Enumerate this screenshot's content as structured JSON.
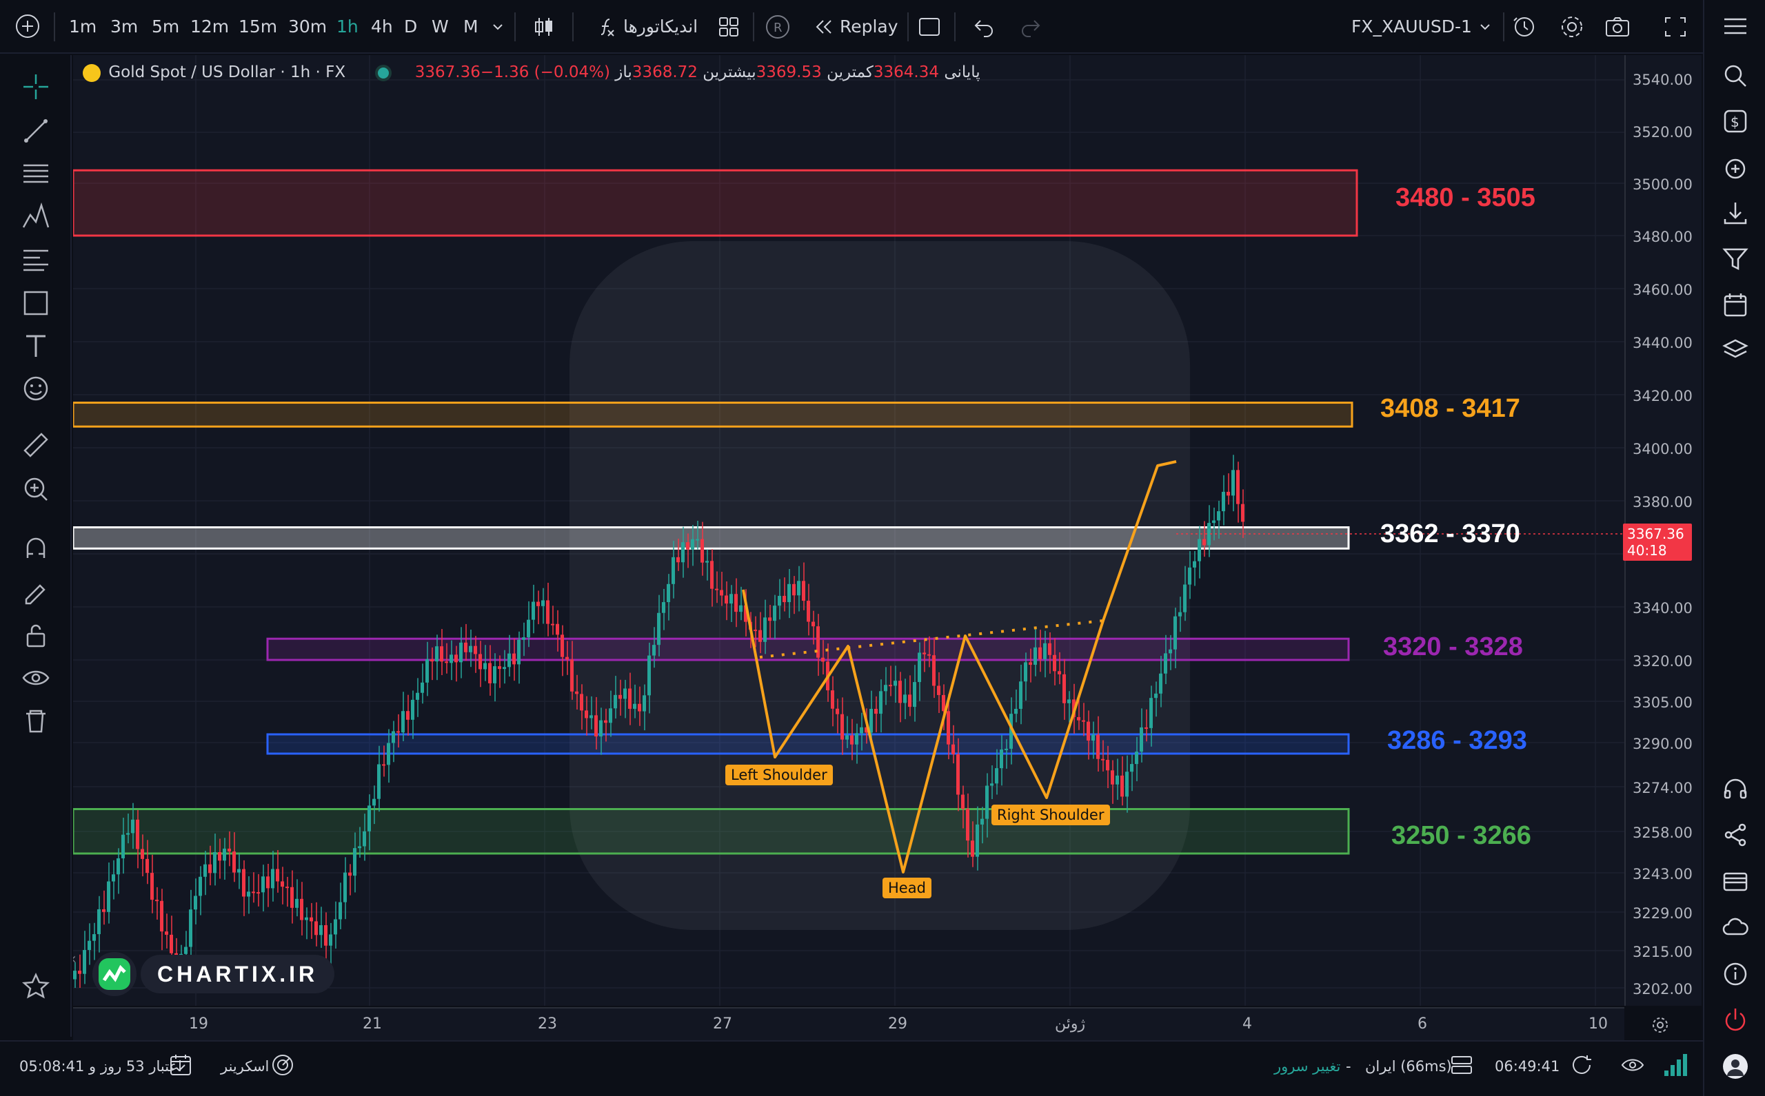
{
  "toolbar": {
    "timeframes": [
      "1m",
      "3m",
      "5m",
      "12m",
      "15m",
      "30m",
      "1h",
      "4h",
      "D",
      "W",
      "M"
    ],
    "active_timeframe": "1h",
    "indicators_label": "اندیکاتورها",
    "replay_label": "Replay",
    "symbol": "FX_XAUUSD-1"
  },
  "legend": {
    "title": "Gold Spot / US Dollar",
    "interval": "1h",
    "source": "FX",
    "open_label": "باز",
    "open_value": "3368.72",
    "high_label": "بیشترین",
    "high_value": "3369.53",
    "low_label": "کمترین",
    "low_value": "3364.34",
    "close_label": "پایانی",
    "close_value": "3367.36",
    "change": "−1.36 (−0.04%)"
  },
  "zones": [
    {
      "label": "3480 - 3505",
      "low": 3480,
      "high": 3505,
      "color": "#f23645"
    },
    {
      "label": "3408 - 3417",
      "low": 3408,
      "high": 3417,
      "color": "#f7a21b"
    },
    {
      "label": "3362 - 3370",
      "low": 3362,
      "high": 3370,
      "color": "#ffffff"
    },
    {
      "label": "3320 - 3328",
      "low": 3320,
      "high": 3328,
      "color": "#9c27b0"
    },
    {
      "label": "3286 - 3293",
      "low": 3286,
      "high": 3293,
      "color": "#2962ff"
    },
    {
      "label": "3250 - 3266",
      "low": 3250,
      "high": 3266,
      "color": "#4caf50"
    }
  ],
  "pattern_labels": {
    "left_shoulder": "Left Shoulder",
    "head": "Head",
    "right_shoulder": "Right Shoulder"
  },
  "price_axis": [
    "3540.00",
    "3520.00",
    "3500.00",
    "3480.00",
    "3460.00",
    "3440.00",
    "3420.00",
    "3400.00",
    "3380.00",
    "3340.00",
    "3320.00",
    "3305.00",
    "3290.00",
    "3274.00",
    "3258.00",
    "3243.00",
    "3229.00",
    "3215.00",
    "3202.00"
  ],
  "time_axis": [
    "19",
    "21",
    "23",
    "27",
    "29",
    "ژوئن",
    "4",
    "6",
    "10"
  ],
  "current_price": {
    "value": "3367.36",
    "countdown": "40:18"
  },
  "watermark": "CHARTIX.IR",
  "bottom": {
    "account": "اعتبار 53 روز و 05:08:41",
    "screener": "اسکرینر",
    "change_server": "تغییر سرور",
    "server": "ایران (66ms)",
    "separator": "-",
    "clock": "06:49:41"
  },
  "colors": {
    "up": "#26a69a",
    "down": "#f23645",
    "pattern": "#f7a21b"
  }
}
